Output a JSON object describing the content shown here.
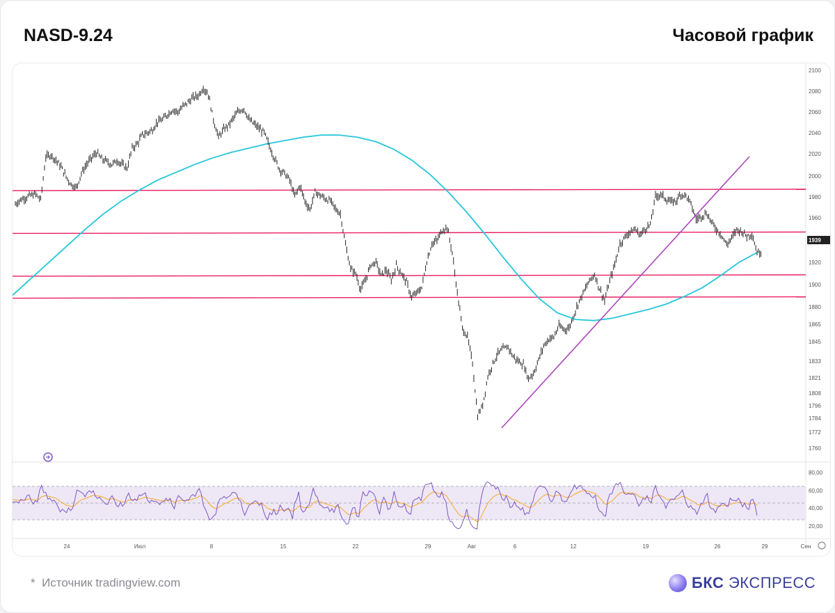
{
  "header": {
    "ticker": "NASD-9.24",
    "timeframe": "Часовой график"
  },
  "footer": {
    "source": "Источник tradingview.com",
    "source_marker": "*",
    "brand_short": "БКС",
    "brand_long": "ЭКСПРЕСС"
  },
  "colors": {
    "candles": "#222222",
    "ma": "#26c6da",
    "levels": "#e91e63",
    "trendline": "#ab47bc",
    "rsi": "#7e57c2",
    "rsi_signal": "#f9a825",
    "rsi_band": "#ede7f6",
    "price_tag": "#222222"
  },
  "chart_data": {
    "type": "line",
    "title": "",
    "price_axis": {
      "ticks": [
        "2100",
        "2080",
        "2060",
        "2040",
        "2020",
        "2000",
        "1980",
        "1960",
        "1939",
        "1920",
        "1900",
        "1880",
        "1865",
        "1845",
        "1833",
        "1821",
        "1808",
        "1796",
        "1784",
        "1772",
        "1760"
      ],
      "current": "1939"
    },
    "time_axis": {
      "ticks": [
        "24",
        "Июл",
        "8",
        "15",
        "22",
        "29",
        "Авг",
        "6",
        "12",
        "19",
        "26",
        "29",
        "Сен"
      ]
    },
    "horizontal_levels": [
      19960,
      19570,
      19180,
      18980
    ],
    "trendline": {
      "from": [
        17880,
        "Авг 5"
      ],
      "to": [
        20190,
        "Авг 28"
      ]
    },
    "series": [
      {
        "kind": "price",
        "values": [
          19830,
          19870,
          19890,
          19910,
          19920,
          19870,
          20260,
          20280,
          20230,
          20170,
          20080,
          20010,
          19980,
          20110,
          20190,
          20250,
          20300,
          20240,
          20220,
          20190,
          20230,
          20190,
          20160,
          20340,
          20380,
          20460,
          20480,
          20510,
          20580,
          20600,
          20650,
          20690,
          20670,
          20720,
          20760,
          20800,
          20820,
          20890,
          20830,
          20600,
          20440,
          20510,
          20550,
          20620,
          20680,
          20700,
          20600,
          20560,
          20520,
          20480,
          20360,
          20250,
          20150,
          20110,
          20050,
          19900,
          20000,
          19860,
          19780,
          19940,
          19910,
          19880,
          19860,
          19790,
          19740,
          19460,
          19240,
          19200,
          19050,
          19150,
          19280,
          19300,
          19180,
          19230,
          19140,
          19270,
          19200,
          19120,
          18980,
          19020,
          19070,
          19310,
          19470,
          19500,
          19590,
          19620,
          19390,
          19020,
          18700,
          18620,
          18380,
          17900,
          18000,
          18260,
          18380,
          18470,
          18510,
          18530,
          18440,
          18400,
          18370,
          18240,
          18290,
          18410,
          18540,
          18600,
          18620,
          18720,
          18690,
          18700,
          18830,
          18950,
          19040,
          19130,
          19190,
          19060,
          18950,
          19130,
          19280,
          19470,
          19530,
          19580,
          19600,
          19550,
          19610,
          19640,
          19900,
          19920,
          19880,
          19850,
          19860,
          19920,
          19910,
          19830,
          19690,
          19720,
          19750,
          19670,
          19600,
          19550,
          19460,
          19520,
          19600,
          19580,
          19540,
          19560,
          19390
        ]
      },
      {
        "kind": "ma",
        "name": "",
        "values": [
          19000,
          19150,
          19300,
          19450,
          19600,
          19740,
          19860,
          19960,
          20050,
          20120,
          20190,
          20250,
          20300,
          20340,
          20380,
          20410,
          20440,
          20460,
          20460,
          20440,
          20400,
          20330,
          20230,
          20100,
          19940,
          19760,
          19560,
          19350,
          19150,
          18970,
          18840,
          18780,
          18770,
          18790,
          18830,
          18870,
          18920,
          18990,
          19070,
          19180,
          19300,
          19390
        ]
      }
    ],
    "rsi": {
      "ylim": [
        0,
        100
      ],
      "ticks": [
        "80,00",
        "60,00",
        "40,00",
        "20,00"
      ],
      "upper_band": 70,
      "lower_band": 30,
      "mid": 50
    }
  }
}
